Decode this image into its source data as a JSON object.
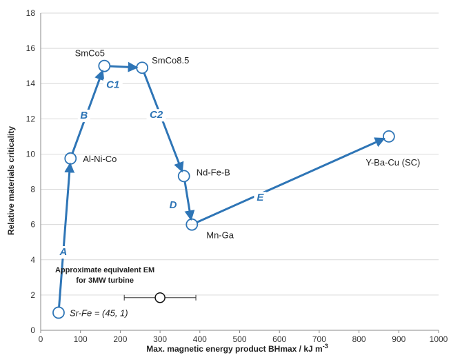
{
  "chart_data": {
    "type": "line",
    "xlabel": "Max. magnetic energy product BHmax / kJ m",
    "xlabel_superscript": "-3",
    "ylabel": "Relative materials criticality",
    "xlim": [
      0,
      1000
    ],
    "ylim": [
      0,
      18
    ],
    "x_ticks": [
      "0",
      "100",
      "200",
      "300",
      "400",
      "500",
      "600",
      "700",
      "800",
      "900",
      "1000"
    ],
    "y_ticks": [
      "0",
      "2",
      "4",
      "6",
      "8",
      "10",
      "12",
      "14",
      "16",
      "18"
    ],
    "grid": "horizontal",
    "series": [
      {
        "points": [
          {
            "name": "Sr-Fe",
            "label": "Sr-Fe = (45, 1)",
            "x": 45,
            "y": 1
          },
          {
            "name": "Al-Ni-Co",
            "label": "Al-Ni-Co",
            "x": 75,
            "y": 9.75
          },
          {
            "name": "SmCo5",
            "label": "SmCo5",
            "x": 160,
            "y": 15
          },
          {
            "name": "SmCo8.5",
            "label": "SmCo8.5",
            "x": 255,
            "y": 14.9
          },
          {
            "name": "Nd-Fe-B",
            "label": "Nd-Fe-B",
            "x": 360,
            "y": 8.75
          },
          {
            "name": "Mn-Ga",
            "label": "Mn-Ga",
            "x": 380,
            "y": 6
          },
          {
            "name": "Y-Ba-Cu (SC)",
            "label": "Y-Ba-Cu (SC)",
            "x": 875,
            "y": 11
          }
        ]
      }
    ],
    "segments": [
      "A",
      "B",
      "C1",
      "C2",
      "D",
      "E"
    ],
    "annotation": {
      "text_line1": "Approximate equivalent EM",
      "text_line2": "for 3MW turbine",
      "x": 300,
      "y": 1.85,
      "x_range": [
        210,
        390
      ]
    },
    "colors": {
      "series": "#2E75B6",
      "grid": "#D9D9D9",
      "marker_fill": "#ffffff"
    }
  }
}
